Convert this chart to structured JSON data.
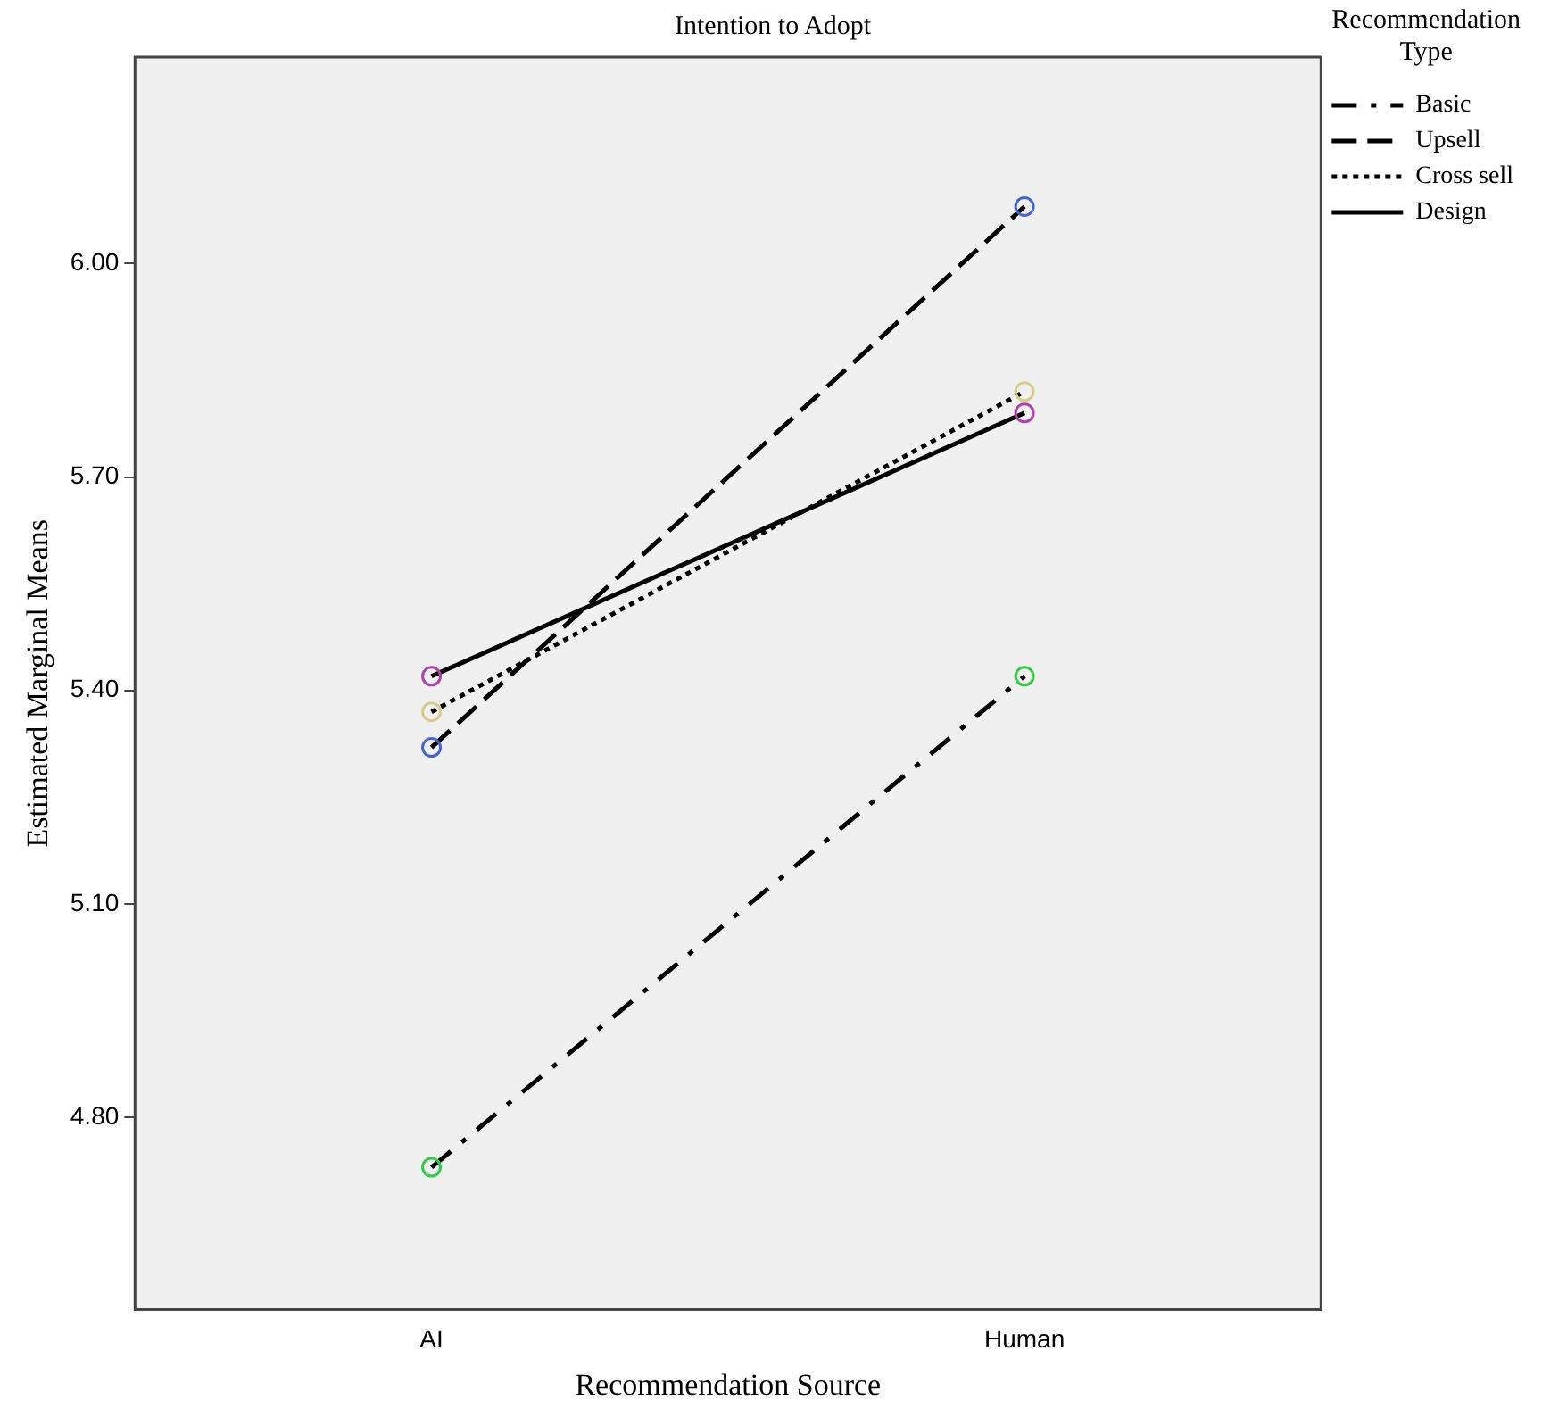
{
  "chart_data": {
    "type": "line",
    "title": "Intention to Adopt",
    "xlabel": "Recommendation Source",
    "ylabel": "Estimated Marginal Means",
    "legend_title": "Recommendation Type",
    "categories": [
      "AI",
      "Human"
    ],
    "series": [
      {
        "name": "Basic",
        "color": "#000000",
        "colors": [
          "#33cc44",
          "#33cc44"
        ],
        "line_style": "dashdot",
        "values": [
          4.73,
          5.42
        ]
      },
      {
        "name": "Upsell",
        "color": "#000000",
        "colors": [
          "#4466cc",
          "#4466cc"
        ],
        "line_style": "dashed",
        "values": [
          5.32,
          6.08
        ]
      },
      {
        "name": "Cross sell",
        "color": "#000000",
        "colors": [
          "#d8cc88",
          "#d8cc88"
        ],
        "line_style": "dotted",
        "values": [
          5.37,
          5.82
        ]
      },
      {
        "name": "Design",
        "color": "#000000",
        "colors": [
          "#aa44aa",
          "#aa44aa"
        ],
        "line_style": "solid",
        "values": [
          5.42,
          5.79
        ]
      }
    ],
    "ylim": [
      4.53,
      6.29
    ],
    "yticks": [
      {
        "value": 4.8,
        "label": "4.80"
      },
      {
        "value": 5.1,
        "label": "5.10"
      },
      {
        "value": 5.4,
        "label": "5.40"
      },
      {
        "value": 5.7,
        "label": "5.70"
      },
      {
        "value": 6,
        "label": "6.00"
      }
    ],
    "marker": "circle",
    "grid": false,
    "legend": "right"
  }
}
